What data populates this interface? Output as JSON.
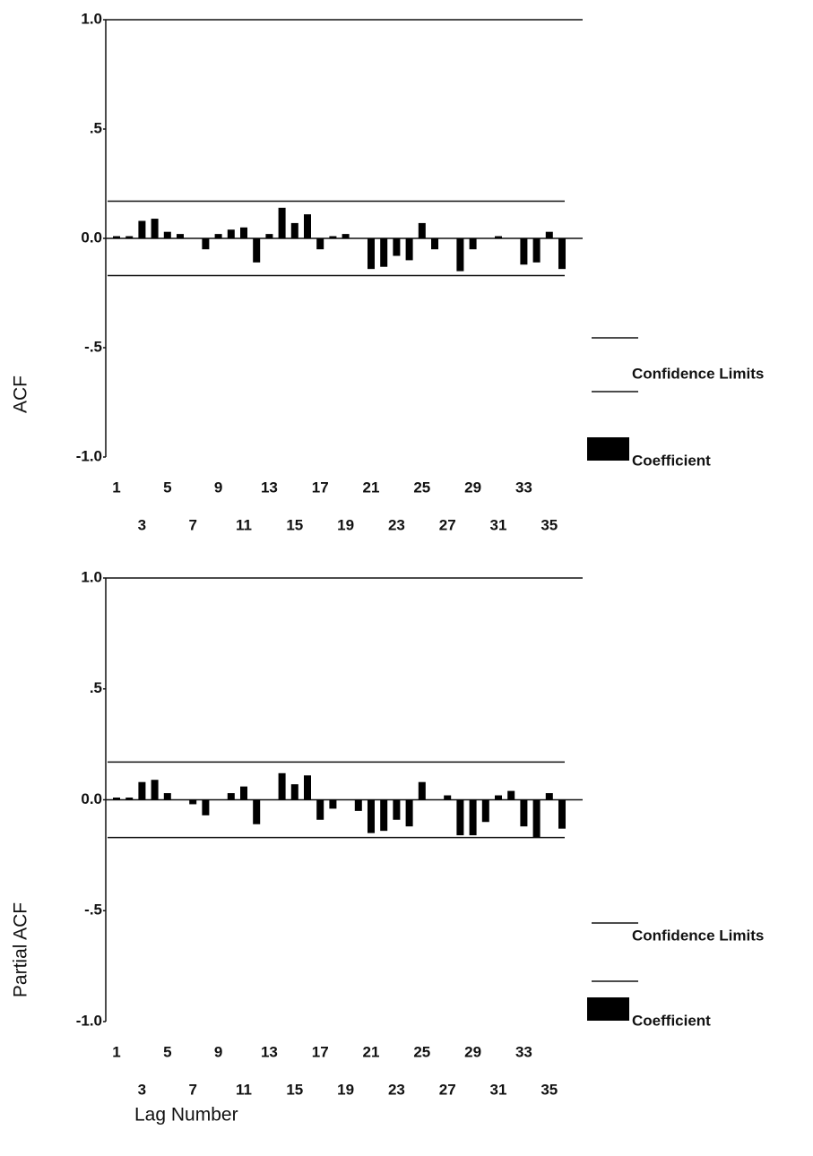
{
  "chart_data": [
    {
      "type": "bar",
      "y_label": "ACF",
      "categories": [
        "1",
        null,
        "3",
        null,
        "5",
        null,
        "7",
        null,
        "9",
        null,
        "11",
        null,
        "13",
        null,
        "15",
        null,
        "17",
        null,
        "19",
        null,
        "21",
        null,
        "23",
        null,
        "25",
        null,
        "27",
        null,
        "29",
        null,
        "31",
        null,
        "33",
        null,
        "35",
        null
      ],
      "series": [
        {
          "name": "Coefficient",
          "color": "#000000",
          "values": [
            0.01,
            0.01,
            0.08,
            0.09,
            0.03,
            0.02,
            0.0,
            -0.05,
            0.02,
            0.04,
            0.05,
            -0.11,
            0.02,
            0.14,
            0.07,
            0.11,
            -0.05,
            0.01,
            0.02,
            0.0,
            -0.14,
            -0.13,
            -0.08,
            -0.1,
            0.07,
            -0.05,
            0.0,
            -0.15,
            -0.05,
            0.0,
            0.01,
            0.0,
            -0.12,
            -0.11,
            0.03,
            -0.14
          ]
        }
      ],
      "confidence_limits": {
        "name": "Confidence Limits",
        "values": [
          0.17,
          -0.17
        ]
      },
      "ylim": [
        -1,
        1
      ],
      "yticks": [
        {
          "value": 1,
          "label": "1.0"
        },
        {
          "value": 0.5,
          "label": ".5"
        },
        {
          "value": 0,
          "label": "0.0"
        },
        {
          "value": -0.5,
          "label": "-.5"
        },
        {
          "value": -1,
          "label": "-1.0"
        }
      ]
    },
    {
      "type": "bar",
      "y_label": "Partial ACF",
      "x_label": "Lag Number",
      "categories": [
        "1",
        null,
        "3",
        null,
        "5",
        null,
        "7",
        null,
        "9",
        null,
        "11",
        null,
        "13",
        null,
        "15",
        null,
        "17",
        null,
        "19",
        null,
        "21",
        null,
        "23",
        null,
        "25",
        null,
        "27",
        null,
        "29",
        null,
        "31",
        null,
        "33",
        null,
        "35",
        null
      ],
      "series": [
        {
          "name": "Coefficient",
          "color": "#000000",
          "values": [
            0.01,
            0.01,
            0.08,
            0.09,
            0.03,
            0.0,
            -0.02,
            -0.07,
            0.0,
            0.03,
            0.06,
            -0.11,
            0.0,
            0.12,
            0.07,
            0.11,
            -0.09,
            -0.04,
            0.0,
            -0.05,
            -0.15,
            -0.14,
            -0.09,
            -0.12,
            0.08,
            0.0,
            0.02,
            -0.16,
            -0.16,
            -0.1,
            0.02,
            0.04,
            -0.12,
            -0.17,
            0.03,
            -0.13
          ]
        }
      ],
      "confidence_limits": {
        "name": "Confidence Limits",
        "values": [
          0.17,
          -0.17
        ]
      },
      "ylim": [
        -1,
        1
      ],
      "yticks": [
        {
          "value": 1,
          "label": "1.0"
        },
        {
          "value": 0.5,
          "label": ".5"
        },
        {
          "value": 0,
          "label": "0.0"
        },
        {
          "value": -0.5,
          "label": "-.5"
        },
        {
          "value": -1,
          "label": "-1.0"
        }
      ]
    }
  ]
}
